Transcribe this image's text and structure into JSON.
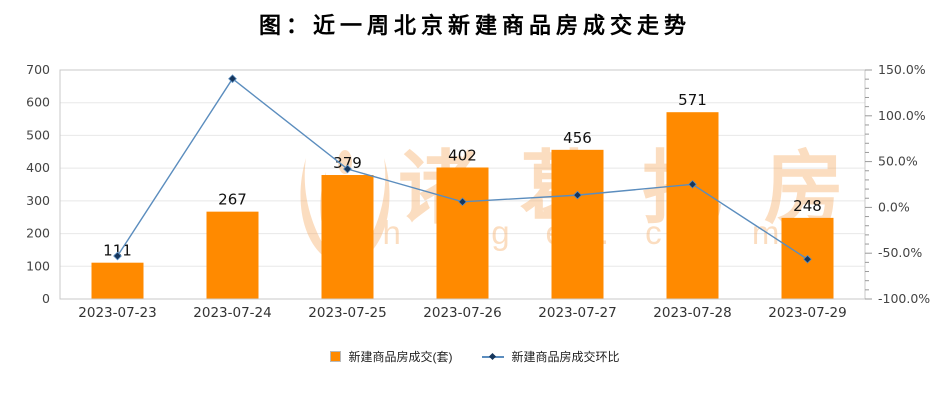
{
  "title": "图：近一周北京新建商品房成交走势",
  "watermark": {
    "brand": "诸葛找房",
    "site": "zhuge.com",
    "color": "#F7A75C",
    "opacity": 0.38
  },
  "colors": {
    "bar": "#FF8A00",
    "line": "#5B8DBE",
    "marker": "#16365C",
    "grid": "#E8E8E8",
    "plot_border": "#C9C9C9",
    "axis_tick": "#999999",
    "tick_text": "#444444",
    "bar_label_text": "#111111",
    "x_label_text": "#333333"
  },
  "chart_data": {
    "type": "bar",
    "subtype": "bar+line dual axis",
    "title": "图：近一周北京新建商品房成交走势",
    "categories": [
      "2023-07-23",
      "2023-07-24",
      "2023-07-25",
      "2023-07-26",
      "2023-07-27",
      "2023-07-28",
      "2023-07-29"
    ],
    "series": [
      {
        "name": "新建商品房成交(套)",
        "type": "bar",
        "axis": "left",
        "values": [
          111,
          267,
          379,
          402,
          456,
          571,
          248
        ],
        "data_labels_shown": true,
        "color": "#FF8A00"
      },
      {
        "name": "新建商品房成交环比",
        "type": "line",
        "axis": "right",
        "unit": "%",
        "values": [
          -53.0,
          140.5,
          41.9,
          6.1,
          13.4,
          25.2,
          -56.6
        ],
        "marker": "diamond",
        "color": "#5B8DBE",
        "marker_color": "#16365C"
      }
    ],
    "left_axis": {
      "min": 0,
      "max": 700,
      "step": 100,
      "tick_labels": [
        "0",
        "100",
        "200",
        "300",
        "400",
        "500",
        "600",
        "700"
      ]
    },
    "right_axis": {
      "min": -100,
      "max": 150,
      "step": 50,
      "minor_step": 10,
      "tick_labels": [
        "-100.0%",
        "-50.0%",
        "0.0%",
        "50.0%",
        "100.0%",
        "150.0%"
      ]
    },
    "grid": true,
    "legend_position": "bottom",
    "xlabel": "",
    "ylabel": ""
  }
}
